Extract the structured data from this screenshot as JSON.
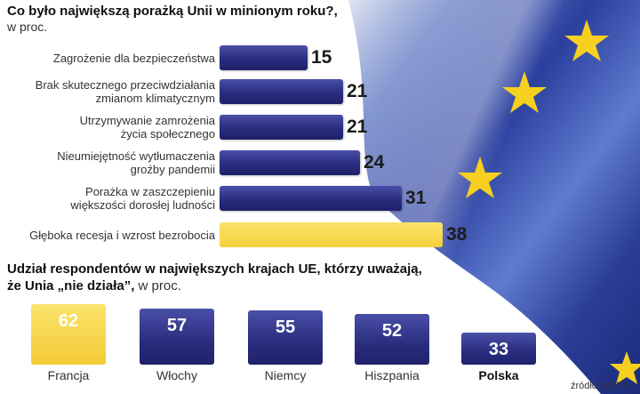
{
  "colors": {
    "bar_navy": "#2a2d7e",
    "highlight_yellow": "#f6cf3a",
    "flag_blue": "#2b3f9e",
    "star_yellow": "#f5d020"
  },
  "flag_icon": "eu-flag-stars-icon",
  "source": "źródło: ECFR",
  "chart_data": [
    {
      "type": "bar",
      "orientation": "horizontal",
      "title": "Co było największą porażką Unii w minionym roku?,",
      "subtitle": "w proc.",
      "categories": [
        "Zagrożenie dla bezpieczeństwa",
        "Brak skutecznego przeciwdziałania\nzmianom klimatycznym",
        "Utrzymywanie zamrożenia\nżycia społecznego",
        "Nieumiejętność wytłumaczenia\ngroźby pandemii",
        "Porażka w zaszczepieniu\nwiększości dorosłej ludności",
        "Głęboka recesja i wzrost bezrobocia"
      ],
      "values": [
        15,
        21,
        21,
        24,
        31,
        38
      ],
      "highlight_index": 5,
      "legend": "none",
      "grid": false
    },
    {
      "type": "bar",
      "orientation": "vertical",
      "title": "Udział respondentów w największych krajach UE, którzy uważają,",
      "title_line2": "że Unia „nie działa”,",
      "subtitle": "w proc.",
      "categories": [
        "Francja",
        "Włochy",
        "Niemcy",
        "Hiszpania",
        "Polska"
      ],
      "values": [
        62,
        57,
        55,
        52,
        33
      ],
      "highlight_index": 0,
      "bold_label_index": 4,
      "legend": "none",
      "grid": false
    }
  ]
}
